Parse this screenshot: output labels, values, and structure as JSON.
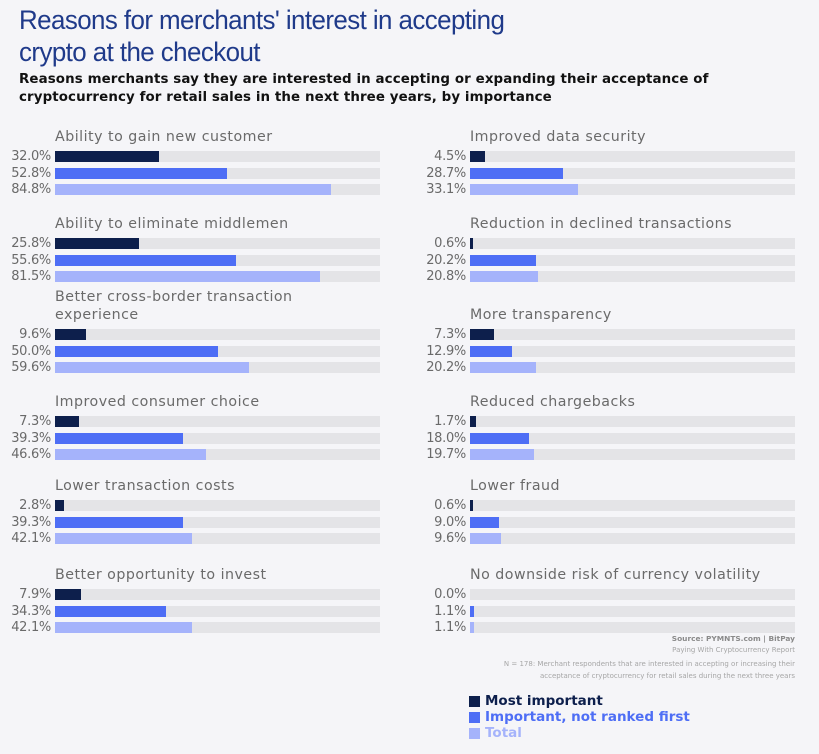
{
  "title": "Reasons for merchants' interest in accepting crypto at the checkout",
  "title_lines": [
    "Reasons for merchants' interest in accepting",
    "crypto at the checkout"
  ],
  "subtitle_lines": [
    "Reasons merchants say they are interested in accepting or expanding their acceptance of",
    "cryptocurrency for retail sales in the next three years, by importance"
  ],
  "colors": {
    "most_important": "#0d1f4c",
    "important_not_first": "#4e6ef5",
    "total": "#a5b3fb",
    "track": "#e4e4e7",
    "title": "#1f3a8a"
  },
  "chart_data": {
    "type": "bar",
    "orientation": "horizontal",
    "title": "Reasons for merchants' interest in accepting crypto at the checkout",
    "subtitle": "Reasons merchants say they are interested in accepting or expanding their acceptance of cryptocurrency for retail sales in the next three years, by importance",
    "xlim": [
      0,
      100
    ],
    "unit": "%",
    "legend_position": "bottom-right",
    "legend": [
      "Most important",
      "Important, not ranked first",
      "Total"
    ],
    "categories": [
      "Ability to gain new customer",
      "Ability to eliminate middlemen",
      "Better cross-border transaction experience",
      "Improved consumer choice",
      "Lower transaction costs",
      "Better opportunity to invest",
      "Improved data security",
      "Reduction in declined transactions",
      "More transparency",
      "Reduced chargebacks",
      "Lower fraud",
      "No downside risk of currency volatility"
    ],
    "category_label_lines": [
      [
        "Ability to gain new customer"
      ],
      [
        "Ability to eliminate middlemen"
      ],
      [
        "Better cross-border transaction",
        "experience"
      ],
      [
        "Improved consumer choice"
      ],
      [
        "Lower transaction costs"
      ],
      [
        "Better opportunity to invest"
      ],
      [
        "Improved data security"
      ],
      [
        "Reduction in declined transactions"
      ],
      [
        "More transparency"
      ],
      [
        "Reduced chargebacks"
      ],
      [
        "Lower fraud"
      ],
      [
        "No downside risk of currency volatility"
      ]
    ],
    "series": [
      {
        "name": "Most important",
        "values": [
          32.0,
          25.8,
          9.6,
          7.3,
          2.8,
          7.9,
          4.5,
          0.6,
          7.3,
          1.7,
          0.6,
          0.0
        ]
      },
      {
        "name": "Important, not ranked first",
        "values": [
          52.8,
          55.6,
          50.0,
          39.3,
          39.3,
          34.3,
          28.7,
          20.2,
          12.9,
          18.0,
          9.0,
          1.1
        ]
      },
      {
        "name": "Total",
        "values": [
          84.8,
          81.5,
          59.6,
          46.6,
          42.1,
          42.1,
          33.1,
          20.8,
          20.2,
          19.7,
          9.6,
          1.1
        ]
      }
    ],
    "value_labels": [
      [
        "32.0%",
        "52.8%",
        "84.8%"
      ],
      [
        "25.8%",
        "55.6%",
        "81.5%"
      ],
      [
        "9.6%",
        "50.0%",
        "59.6%"
      ],
      [
        "7.3%",
        "39.3%",
        "46.6%"
      ],
      [
        "2.8%",
        "39.3%",
        "42.1%"
      ],
      [
        "7.9%",
        "34.3%",
        "42.1%"
      ],
      [
        "4.5%",
        "28.7%",
        "33.1%"
      ],
      [
        "0.6%",
        "20.2%",
        "20.8%"
      ],
      [
        "7.3%",
        "12.9%",
        "20.2%"
      ],
      [
        "1.7%",
        "18.0%",
        "19.7%"
      ],
      [
        "0.6%",
        "9.0%",
        "9.6%"
      ],
      [
        "0.0%",
        "1.1%",
        "1.1%"
      ]
    ]
  },
  "footer": {
    "source": "Source: PYMNTS.com  |  BitPay",
    "report": "Paying With Cryptocurrency Report",
    "note_lines": [
      "N = 178: Merchant respondents that are interested in accepting or increasing their",
      "acceptance of cryptocurrency for retail sales during the next three years"
    ]
  },
  "legend": {
    "items": [
      {
        "label": "Most important",
        "color": "#0d1f4c"
      },
      {
        "label": "Important, not ranked first",
        "color": "#4e6ef5"
      },
      {
        "label": "Total",
        "color": "#a5b3fb"
      }
    ]
  }
}
